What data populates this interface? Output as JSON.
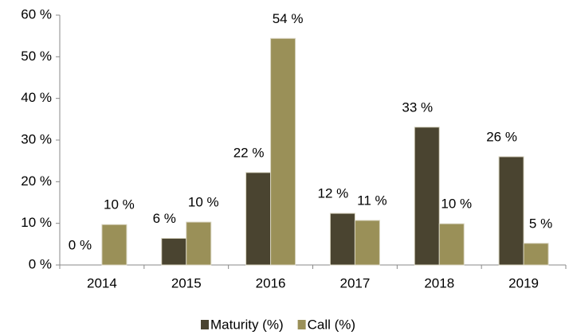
{
  "chart_data": {
    "type": "bar",
    "categories": [
      "2014",
      "2015",
      "2016",
      "2017",
      "2018",
      "2019"
    ],
    "series": [
      {
        "name": "Maturity (%)",
        "color": "#4a4430",
        "values": [
          0,
          6.4,
          22.2,
          12.4,
          33.1,
          26.0
        ],
        "value_labels": [
          "0 %",
          "6 %",
          "22 %",
          "12 %",
          "33 %",
          "26 %"
        ]
      },
      {
        "name": "Call (%)",
        "color": "#9a9058",
        "values": [
          9.7,
          10.3,
          54.4,
          10.7,
          9.9,
          5.2
        ],
        "value_labels": [
          "10 %",
          "10 %",
          "54 %",
          "11 %",
          "10 %",
          "5 %"
        ]
      }
    ],
    "ylim": [
      0,
      60
    ],
    "yticks": [
      {
        "value": 0,
        "label": "0 %"
      },
      {
        "value": 10,
        "label": "10 %"
      },
      {
        "value": 20,
        "label": "20 %"
      },
      {
        "value": 30,
        "label": "30 %"
      },
      {
        "value": 40,
        "label": "40 %"
      },
      {
        "value": 50,
        "label": "50 %"
      },
      {
        "value": 60,
        "label": "60 %"
      }
    ],
    "grid": false,
    "legend": "bottom"
  }
}
